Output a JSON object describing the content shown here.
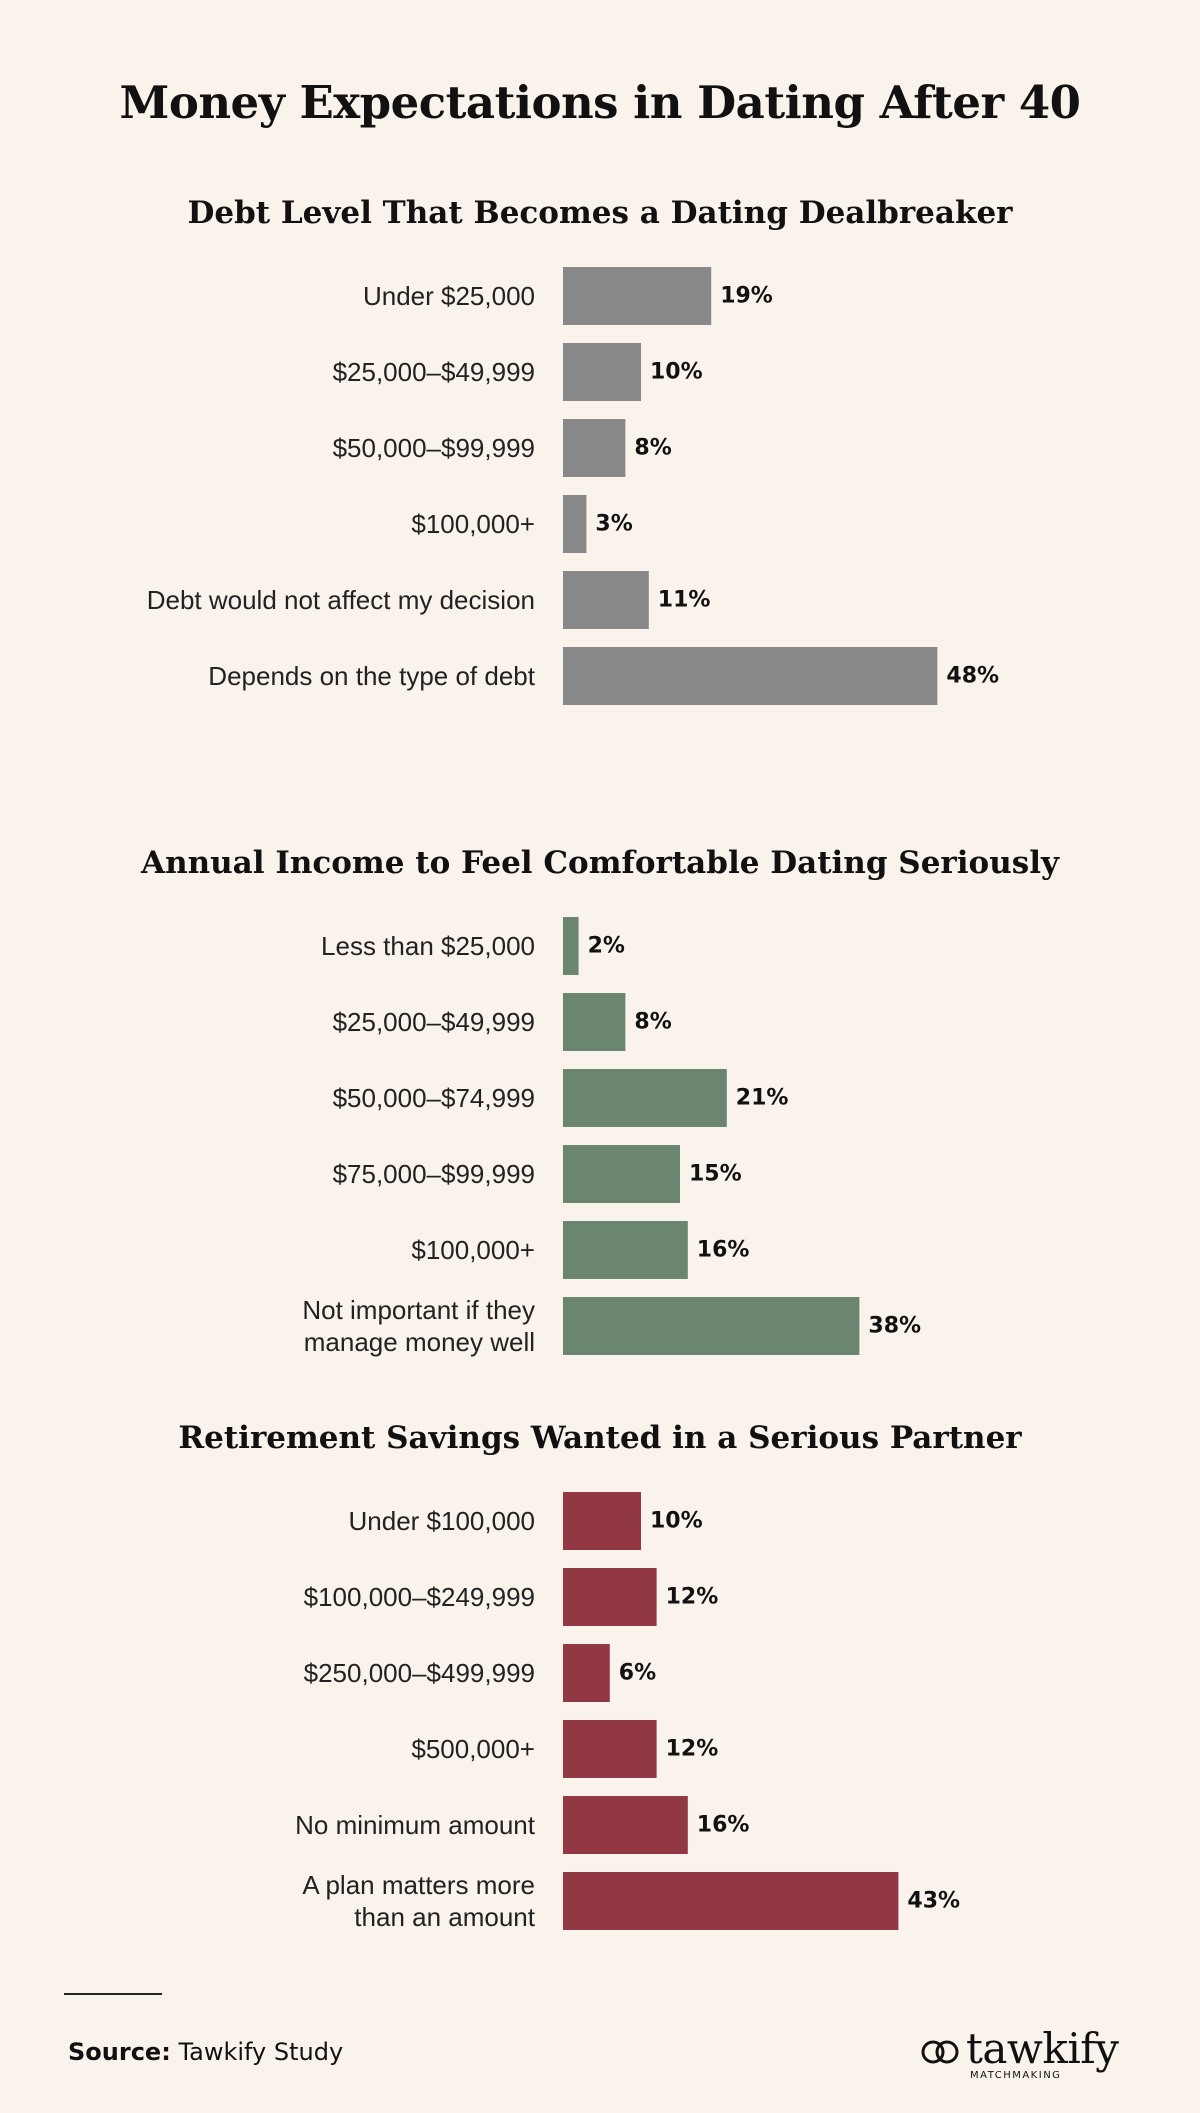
{
  "title": "Money Expectations in Dating After 40",
  "chart_data": [
    {
      "type": "bar",
      "orientation": "horizontal",
      "title": "Debt Level That Becomes a Dating Dealbreaker",
      "color": "#888888",
      "unit": "%",
      "categories": [
        "Under $25,000",
        "$25,000–$49,999",
        "$50,000–$99,999",
        "$100,000+",
        "Debt would not affect my decision",
        "Depends on the type of debt"
      ],
      "values": [
        19,
        10,
        8,
        3,
        11,
        48
      ],
      "value_labels": [
        "19%",
        "10%",
        "8%",
        "3%",
        "11%",
        "48%"
      ]
    },
    {
      "type": "bar",
      "orientation": "horizontal",
      "title": "Annual Income to Feel Comfortable Dating Seriously",
      "color": "#6a8670",
      "unit": "%",
      "categories": [
        "Less than $25,000",
        "$25,000–$49,999",
        "$50,000–$74,999",
        "$75,000–$99,999",
        "$100,000+",
        "Not important if they\nmanage money well"
      ],
      "values": [
        2,
        8,
        21,
        15,
        16,
        38
      ],
      "value_labels": [
        "2%",
        "8%",
        "21%",
        "15%",
        "16%",
        "38%"
      ]
    },
    {
      "type": "bar",
      "orientation": "horizontal",
      "title": "Retirement Savings Wanted in a Serious Partner",
      "color": "#923844",
      "unit": "%",
      "categories": [
        "Under $100,000",
        "$100,000–$249,999",
        "$250,000–$499,999",
        "$500,000+",
        "No minimum amount",
        "A plan matters more\nthan an amount"
      ],
      "values": [
        10,
        12,
        6,
        12,
        16,
        43
      ],
      "value_labels": [
        "10%",
        "12%",
        "6%",
        "12%",
        "16%",
        "43%"
      ]
    }
  ],
  "footer": {
    "source_label": "Source:",
    "source_text": "Tawkify Study"
  },
  "logo": {
    "name": "tawkify",
    "tagline": "MATCHMAKING"
  }
}
